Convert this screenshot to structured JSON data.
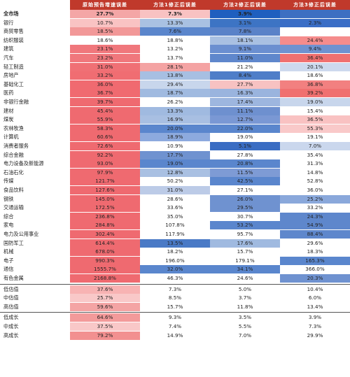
{
  "table": {
    "header_colors": {
      "bar": "#c0392b",
      "text": "#ffffff"
    },
    "columns": [
      "原始预告增速误差",
      "方法1修正后误差",
      "方法2修正后误差",
      "方法3修正后误差"
    ],
    "rows": [
      {
        "name": "全市场",
        "values": [
          "27.7%",
          "7.3%",
          "3.9%",
          ""
        ],
        "bold": true
      },
      {
        "name": "银行",
        "values": [
          "10.7%",
          "13.3%",
          "3.1%",
          "2.3%"
        ]
      },
      {
        "name": "商贸零售",
        "values": [
          "18.5%",
          "7.6%",
          "7.8%",
          ""
        ]
      },
      {
        "name": "纺织服装",
        "values": [
          "18.6%",
          "18.8%",
          "18.1%",
          "24.4%"
        ]
      },
      {
        "name": "建筑",
        "values": [
          "23.1%",
          "13.2%",
          "9.1%",
          "9.4%"
        ]
      },
      {
        "name": "汽车",
        "values": [
          "23.2%",
          "13.7%",
          "11.0%",
          "36.4%"
        ]
      },
      {
        "name": "轻工制造",
        "values": [
          "31.0%",
          "28.1%",
          "21.2%",
          "20.1%"
        ]
      },
      {
        "name": "房地产",
        "values": [
          "33.2%",
          "13.8%",
          "8.4%",
          "18.6%"
        ]
      },
      {
        "name": "基础化工",
        "values": [
          "36.0%",
          "29.4%",
          "27.7%",
          "36.8%"
        ]
      },
      {
        "name": "医药",
        "values": [
          "36.7%",
          "18.7%",
          "16.3%",
          "39.2%"
        ]
      },
      {
        "name": "非银行金融",
        "values": [
          "39.7%",
          "26.2%",
          "17.4%",
          "19.0%"
        ]
      },
      {
        "name": "建材",
        "values": [
          "45.4%",
          "13.3%",
          "11.1%",
          "15.4%"
        ]
      },
      {
        "name": "煤炭",
        "values": [
          "55.9%",
          "16.9%",
          "12.7%",
          "36.5%"
        ]
      },
      {
        "name": "农林牧渔",
        "values": [
          "58.3%",
          "20.0%",
          "22.0%",
          "55.3%"
        ]
      },
      {
        "name": "计算机",
        "values": [
          "60.6%",
          "18.9%",
          "19.0%",
          "19.1%"
        ]
      },
      {
        "name": "消费者服务",
        "values": [
          "72.6%",
          "10.9%",
          "5.1%",
          "7.0%"
        ]
      },
      {
        "name": "综合金融",
        "values": [
          "92.2%",
          "17.7%",
          "27.8%",
          "35.4%"
        ]
      },
      {
        "name": "电力设备及新能源",
        "values": [
          "93.0%",
          "19.0%",
          "20.8%",
          "31.3%"
        ]
      },
      {
        "name": "石油石化",
        "values": [
          "97.9%",
          "12.8%",
          "11.5%",
          "14.8%"
        ]
      },
      {
        "name": "传媒",
        "values": [
          "121.7%",
          "50.2%",
          "42.5%",
          "52.8%"
        ]
      },
      {
        "name": "食品饮料",
        "values": [
          "127.6%",
          "31.0%",
          "27.1%",
          "36.0%"
        ]
      },
      {
        "name": "钢铁",
        "values": [
          "145.0%",
          "28.6%",
          "26.0%",
          "25.2%"
        ]
      },
      {
        "name": "交通运输",
        "values": [
          "172.5%",
          "33.6%",
          "29.5%",
          "33.2%"
        ]
      },
      {
        "name": "综合",
        "values": [
          "236.8%",
          "35.0%",
          "30.7%",
          "24.3%"
        ]
      },
      {
        "name": "家电",
        "values": [
          "284.8%",
          "107.8%",
          "53.2%",
          "54.9%"
        ]
      },
      {
        "name": "电力及公用事业",
        "values": [
          "302.4%",
          "117.9%",
          "95.7%",
          "88.4%"
        ]
      },
      {
        "name": "国防军工",
        "values": [
          "614.4%",
          "13.5%",
          "17.6%",
          "29.6%"
        ]
      },
      {
        "name": "机械",
        "values": [
          "678.0%",
          "18.2%",
          "15.7%",
          "18.3%"
        ]
      },
      {
        "name": "电子",
        "values": [
          "990.3%",
          "196.0%",
          "179.1%",
          "165.3%"
        ]
      },
      {
        "name": "通信",
        "values": [
          "1555.7%",
          "32.0%",
          "34.1%",
          "366.0%"
        ]
      },
      {
        "name": "有色金属",
        "values": [
          "2168.8%",
          "46.3%",
          "24.6%",
          "20.3%"
        ]
      },
      {
        "name": "低估值",
        "values": [
          "37.6%",
          "7.3%",
          "5.0%",
          "10.4%"
        ],
        "sep": true
      },
      {
        "name": "中估值",
        "values": [
          "25.7%",
          "8.5%",
          "3.7%",
          "6.0%"
        ]
      },
      {
        "name": "高估值",
        "values": [
          "59.6%",
          "15.7%",
          "11.8%",
          "13.4%"
        ]
      },
      {
        "name": "低成长",
        "values": [
          "64.6%",
          "9.3%",
          "3.5%",
          "3.9%"
        ],
        "sep": true
      },
      {
        "name": "中成长",
        "values": [
          "37.5%",
          "7.4%",
          "5.5%",
          "7.3%"
        ]
      },
      {
        "name": "高成长",
        "values": [
          "79.2%",
          "14.9%",
          "7.0%",
          "29.9%"
        ]
      }
    ],
    "cell_colors": [
      [
        "#f4a6a6",
        "#f9c2c2",
        "#1f5fbf",
        "#3d6fc2"
      ],
      [
        "#f9c3c3",
        "#a9c1e2",
        "#3d74c4",
        "#3a6ec6"
      ],
      [
        "#f29898",
        "#5b86cc",
        "#5a82c8",
        "#ffffff"
      ],
      [
        "#ffffff",
        "#ffffff",
        "#a9c0e2",
        "#f58c8c"
      ],
      [
        "#f0777c",
        "#ffffff",
        "#6b8fd0",
        "#6f92d0"
      ],
      [
        "#f0777c",
        "#ffffff",
        "#5f87cc",
        "#f07070"
      ],
      [
        "#f07075",
        "#f4a3a3",
        "#ffffff",
        "#cdd9ee"
      ],
      [
        "#f06d72",
        "#a7bfe2",
        "#4f7ec8",
        "#ffffff"
      ],
      [
        "#f06a70",
        "#c8d6ec",
        "#f7c2c2",
        "#f28080"
      ],
      [
        "#f06a70",
        "#a0bae0",
        "#9ab4de",
        "#f07070"
      ],
      [
        "#ef6a70",
        "#ffffff",
        "#9db6df",
        "#c8d6ec"
      ],
      [
        "#ef6a70",
        "#a0bae0",
        "#6e90cf",
        "#ffffff"
      ],
      [
        "#ef6a70",
        "#a8bfe2",
        "#7a98d4",
        "#f9c2c2"
      ],
      [
        "#ef6a70",
        "#5a86cd",
        "#5a86cd",
        "#f9c9c9"
      ],
      [
        "#ef6a70",
        "#8daade",
        "#ffffff",
        "#ffffff"
      ],
      [
        "#ef6a70",
        "#ffffff",
        "#3a6dc3",
        "#cad7ed"
      ],
      [
        "#ef6a70",
        "#6f92d0",
        "#ffffff",
        "#ffffff"
      ],
      [
        "#ef6a70",
        "#5a86cd",
        "#5a86cd",
        "#ffffff"
      ],
      [
        "#ef6a70",
        "#a9c0e2",
        "#7e9bd5",
        "#ffffff"
      ],
      [
        "#ef6a70",
        "#ffffff",
        "#5a86cd",
        "#ffffff"
      ],
      [
        "#ef6a70",
        "#bccbe7",
        "#ffffff",
        "#ffffff"
      ],
      [
        "#ef6a70",
        "#ffffff",
        "#6f92d0",
        "#8aa8db"
      ],
      [
        "#ef6a70",
        "#ffffff",
        "#6f92d0",
        "#ffffff"
      ],
      [
        "#ef6a70",
        "#ffffff",
        "#ffffff",
        "#5e87cc"
      ],
      [
        "#ef6a70",
        "#ffffff",
        "#5a86cd",
        "#5e87cc"
      ],
      [
        "#ef6a70",
        "#ffffff",
        "#ffffff",
        "#5e87cc"
      ],
      [
        "#ef6a70",
        "#4a7ac6",
        "#a0bae0",
        "#ffffff"
      ],
      [
        "#ef6a70",
        "#ffffff",
        "#ffffff",
        "#ffffff"
      ],
      [
        "#ef6a70",
        "#ffffff",
        "#ffffff",
        "#5a86cd"
      ],
      [
        "#ef6a70",
        "#5a86cd",
        "#5a86cd",
        "#ffffff"
      ],
      [
        "#ef6a70",
        "#ffffff",
        "#ffffff",
        "#6f92d0"
      ],
      [
        "#f8b3b3",
        "#ffffff",
        "#ffffff",
        "#ffffff"
      ],
      [
        "#f9c8c8",
        "#ffffff",
        "#ffffff",
        "#ffffff"
      ],
      [
        "#f4a4a4",
        "#ffffff",
        "#ffffff",
        "#ffffff"
      ],
      [
        "#f39a9a",
        "#ffffff",
        "#ffffff",
        "#ffffff"
      ],
      [
        "#f9c8c8",
        "#ffffff",
        "#ffffff",
        "#ffffff"
      ],
      [
        "#f29090",
        "#ffffff",
        "#ffffff",
        "#ffffff"
      ]
    ]
  }
}
